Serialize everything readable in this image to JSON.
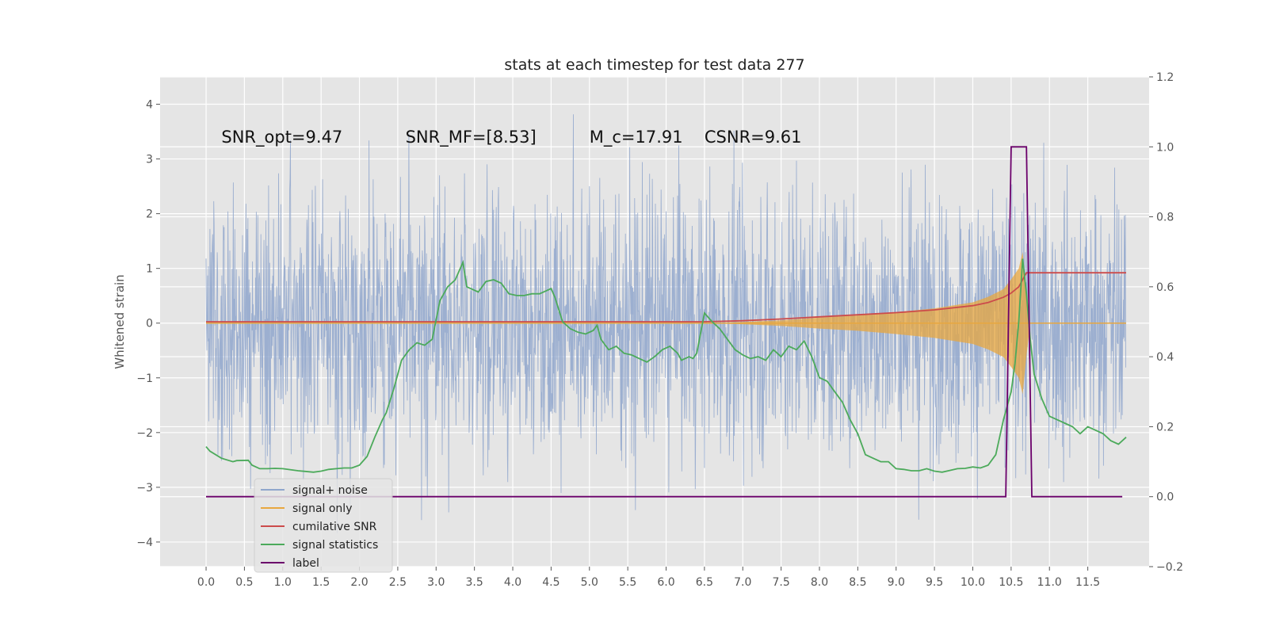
{
  "chart_data": {
    "type": "line",
    "title": "stats at each timestep for test data 277",
    "ylabel": "Whitened strain",
    "ylabel_right": "",
    "xlim": [
      -0.6,
      12.3
    ],
    "ylim": [
      -4.45,
      4.5
    ],
    "ylim_right": [
      -0.2,
      1.2
    ],
    "x_ticks": [
      "0.0",
      "0.5",
      "1.0",
      "1.5",
      "2.0",
      "2.5",
      "3.0",
      "3.5",
      "4.0",
      "4.5",
      "5.0",
      "5.5",
      "6.0",
      "6.5",
      "7.0",
      "7.5",
      "8.0",
      "8.5",
      "9.0",
      "9.5",
      "10.0",
      "10.5",
      "11.0",
      "11.5"
    ],
    "y_ticks": [
      "4",
      "3",
      "2",
      "1",
      "0",
      "−1",
      "−2",
      "−3",
      "−4"
    ],
    "y_ticks_right": [
      "1.2",
      "1.0",
      "0.8",
      "0.6",
      "0.4",
      "0.2",
      "0.0",
      "−0.2"
    ],
    "grid": true,
    "legend_position": "lower-left",
    "annotations": [
      {
        "text": "SNR_opt=9.47",
        "x": 0.2,
        "y": 3.3
      },
      {
        "text": "SNR_MF=[8.53]",
        "x": 2.6,
        "y": 3.3
      },
      {
        "text": "M_c=17.91",
        "x": 5.0,
        "y": 3.3
      },
      {
        "text": "CSNR=9.61",
        "x": 6.5,
        "y": 3.3
      }
    ],
    "series": [
      {
        "name": "signal+ noise",
        "color": "#8fa6cc",
        "axis": "left",
        "description": "noisy whitened strain, roughly gaussian with std 1.2"
      },
      {
        "name": "signal only",
        "color": "#e8a73f",
        "axis": "left",
        "envelope": {
          "x": [
            6.5,
            7.0,
            7.5,
            8.0,
            8.5,
            9.0,
            9.5,
            10.0,
            10.2,
            10.4,
            10.5,
            10.6,
            10.65,
            10.7,
            10.75
          ],
          "y": [
            0.0,
            0.02,
            0.05,
            0.1,
            0.14,
            0.2,
            0.27,
            0.38,
            0.48,
            0.62,
            0.8,
            1.0,
            1.3,
            0.6,
            0.0
          ]
        }
      },
      {
        "name": "cumilative SNR",
        "color": "#cc4b4b",
        "axis": "right",
        "x": [
          0.0,
          6.5,
          7.0,
          7.5,
          8.0,
          8.5,
          9.0,
          9.5,
          10.0,
          10.2,
          10.4,
          10.5,
          10.6,
          10.7,
          11.0,
          11.5,
          12.0
        ],
        "y": [
          0.5,
          0.5,
          0.503,
          0.508,
          0.514,
          0.52,
          0.526,
          0.534,
          0.546,
          0.555,
          0.57,
          0.582,
          0.6,
          0.64,
          0.64,
          0.64,
          0.64
        ]
      },
      {
        "name": "signal statistics",
        "color": "#4caa5b",
        "axis": "right",
        "x": [
          0.0,
          0.05,
          0.2,
          0.35,
          0.4,
          0.55,
          0.6,
          0.7,
          0.8,
          0.9,
          1.0,
          1.2,
          1.4,
          1.5,
          1.6,
          1.7,
          1.8,
          1.9,
          2.0,
          2.1,
          2.2,
          2.3,
          2.35,
          2.45,
          2.55,
          2.65,
          2.75,
          2.85,
          2.95,
          3.05,
          3.15,
          3.25,
          3.35,
          3.4,
          3.45,
          3.55,
          3.65,
          3.75,
          3.85,
          3.95,
          4.05,
          4.15,
          4.25,
          4.35,
          4.45,
          4.5,
          4.55,
          4.65,
          4.75,
          4.85,
          4.95,
          5.05,
          5.1,
          5.15,
          5.25,
          5.35,
          5.45,
          5.55,
          5.65,
          5.75,
          5.85,
          5.95,
          6.05,
          6.15,
          6.2,
          6.3,
          6.35,
          6.4,
          6.5,
          6.6,
          6.7,
          6.8,
          6.9,
          7.0,
          7.1,
          7.2,
          7.3,
          7.4,
          7.5,
          7.6,
          7.7,
          7.8,
          7.9,
          8.0,
          8.1,
          8.2,
          8.3,
          8.4,
          8.5,
          8.6,
          8.7,
          8.8,
          8.9,
          9.0,
          9.1,
          9.2,
          9.3,
          9.4,
          9.5,
          9.6,
          9.7,
          9.8,
          9.9,
          10.0,
          10.1,
          10.2,
          10.3,
          10.4,
          10.5,
          10.55,
          10.6,
          10.65,
          10.7,
          10.75,
          10.8,
          10.9,
          11.0,
          11.1,
          11.2,
          11.3,
          11.4,
          11.5,
          11.6,
          11.7,
          11.8,
          11.9,
          12.0
        ],
        "y": [
          0.143,
          0.13,
          0.11,
          0.1,
          0.103,
          0.104,
          0.09,
          0.08,
          0.08,
          0.081,
          0.08,
          0.074,
          0.07,
          0.073,
          0.078,
          0.08,
          0.082,
          0.082,
          0.09,
          0.115,
          0.17,
          0.22,
          0.24,
          0.31,
          0.39,
          0.42,
          0.44,
          0.433,
          0.45,
          0.56,
          0.6,
          0.62,
          0.67,
          0.6,
          0.595,
          0.585,
          0.615,
          0.62,
          0.61,
          0.58,
          0.575,
          0.575,
          0.58,
          0.58,
          0.59,
          0.595,
          0.57,
          0.5,
          0.48,
          0.47,
          0.465,
          0.475,
          0.49,
          0.45,
          0.42,
          0.43,
          0.41,
          0.405,
          0.395,
          0.385,
          0.4,
          0.42,
          0.43,
          0.41,
          0.39,
          0.4,
          0.395,
          0.41,
          0.525,
          0.5,
          0.48,
          0.45,
          0.42,
          0.405,
          0.395,
          0.4,
          0.39,
          0.42,
          0.4,
          0.43,
          0.42,
          0.445,
          0.4,
          0.34,
          0.33,
          0.3,
          0.27,
          0.22,
          0.18,
          0.12,
          0.11,
          0.1,
          0.1,
          0.08,
          0.078,
          0.074,
          0.074,
          0.08,
          0.073,
          0.07,
          0.075,
          0.08,
          0.081,
          0.085,
          0.082,
          0.09,
          0.12,
          0.22,
          0.3,
          0.38,
          0.5,
          0.68,
          0.58,
          0.45,
          0.35,
          0.28,
          0.23,
          0.22,
          0.21,
          0.2,
          0.18,
          0.2,
          0.19,
          0.18,
          0.16,
          0.15,
          0.17
        ]
      },
      {
        "name": "label",
        "color": "#6b006b",
        "axis": "right",
        "x": [
          0.0,
          10.43,
          10.5,
          10.7,
          10.77,
          11.95
        ],
        "y": [
          0.0,
          0.0,
          1.0,
          1.0,
          0.0,
          0.0
        ]
      }
    ]
  }
}
